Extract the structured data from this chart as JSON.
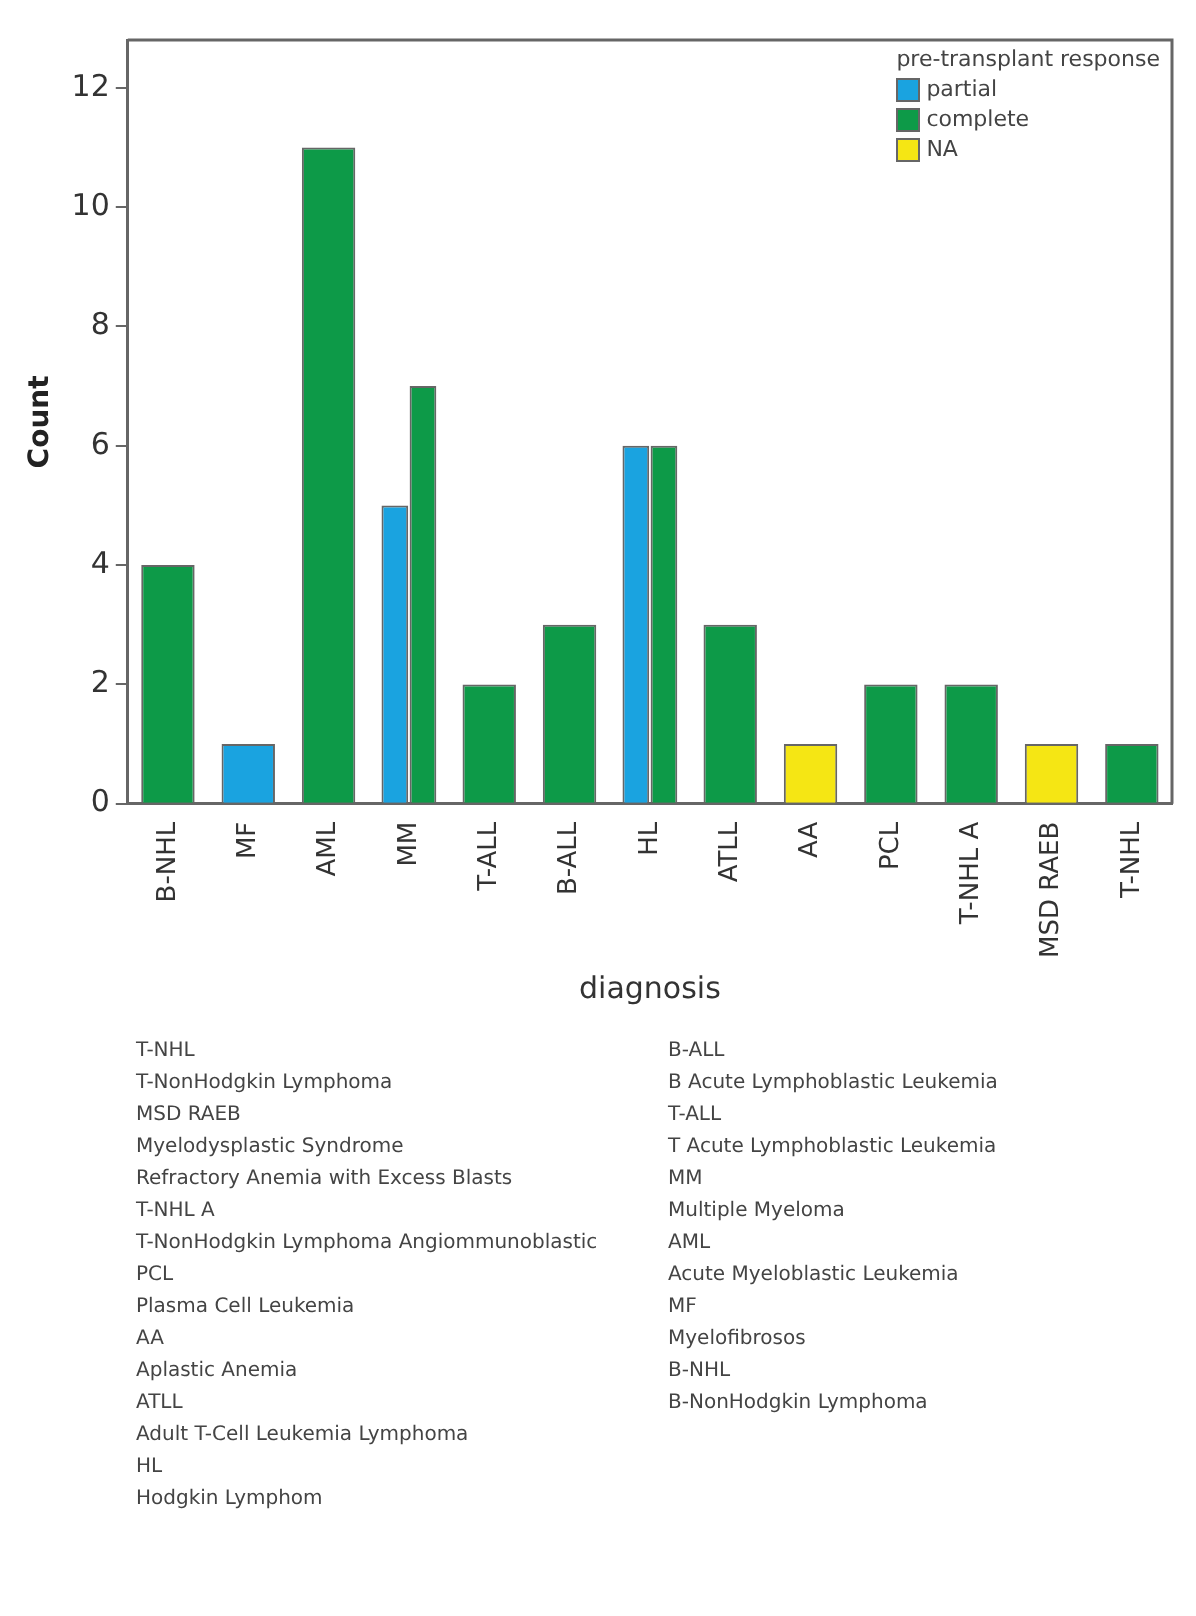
{
  "chart_data": {
    "type": "bar",
    "xlabel": "diagnosis",
    "ylabel": "Count",
    "legend_title": "pre-transplant response",
    "categories": [
      "B-NHL",
      "MF",
      "AML",
      "MM",
      "T-ALL",
      "B-ALL",
      "HL",
      "ATLL",
      "AA",
      "PCL",
      "T-NHL A",
      "MSD RAEB",
      "T-NHL"
    ],
    "series": [
      {
        "name": "partial",
        "color": "#1aa3e0",
        "values": [
          null,
          1,
          null,
          5,
          null,
          null,
          6,
          null,
          null,
          null,
          null,
          null,
          null
        ]
      },
      {
        "name": "complete",
        "color": "#0d9a48",
        "values": [
          4,
          null,
          11,
          7,
          2,
          3,
          6,
          3,
          null,
          2,
          2,
          null,
          1
        ]
      },
      {
        "name": "NA",
        "color": "#f5e614",
        "values": [
          null,
          null,
          null,
          null,
          null,
          null,
          null,
          null,
          1,
          null,
          null,
          1,
          null
        ]
      }
    ],
    "ylim": [
      0,
      12.8
    ],
    "yticks": [
      0,
      2,
      4,
      6,
      8,
      10,
      12
    ],
    "grid": false,
    "legend": "top right",
    "annotations": [
      "T-NHL",
      "T-NonHodgkin Lymphoma",
      "MSD RAEB",
      "Myelodysplastic Syndrome",
      "Refractory Anemia with Excess Blasts",
      "T-NHL A",
      "T-NonHodgkin Lymphoma Angiommunoblastic",
      "PCL",
      "Plasma Cell Leukemia",
      "AA",
      "Aplastic Anemia",
      "ATLL",
      "Adult T-Cell Leukemia Lymphoma",
      "HL",
      "Hodgkin Lymphom",
      "B-ALL",
      "B Acute Lymphoblastic Leukemia",
      "T-ALL",
      "T Acute Lymphoblastic Leukemia",
      "MM",
      "Multiple Myeloma",
      "AML",
      "Acute Myeloblastic Leukemia",
      "MF",
      "Myelofibrosos",
      "B-NHL",
      "B-NonHodgkin Lymphoma"
    ]
  }
}
